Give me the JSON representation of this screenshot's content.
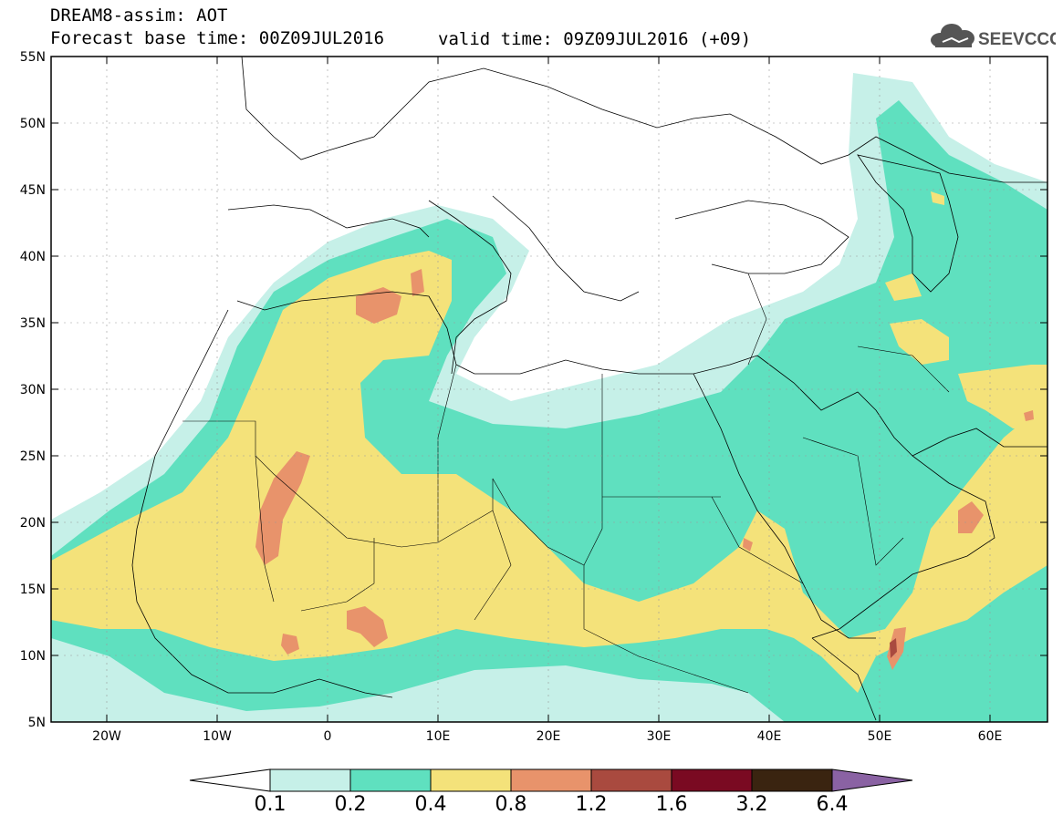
{
  "header": {
    "line1": "DREAM8-assim: AOT",
    "line2": "Forecast base time: 00Z09JUL2016",
    "valid": "valid time: 09Z09JUL2016 (+09)"
  },
  "logo": {
    "text": "SEEVCCC",
    "icon": "cloud-icon"
  },
  "map": {
    "lat_labels": [
      "55N",
      "50N",
      "45N",
      "40N",
      "35N",
      "30N",
      "25N",
      "20N",
      "15N",
      "10N",
      "5N"
    ],
    "lon_labels": [
      "20W",
      "10W",
      "0",
      "10E",
      "20E",
      "30E",
      "40E",
      "50E",
      "60E"
    ]
  },
  "colorbar": {
    "labels": [
      "0.1",
      "0.2",
      "0.4",
      "0.8",
      "1.2",
      "1.6",
      "3.2",
      "6.4"
    ],
    "colors": [
      "#ffffff",
      "#c6f0e8",
      "#5fe0bf",
      "#f4e27a",
      "#e8936b",
      "#a94a3f",
      "#7a0a22",
      "#3a2410",
      "#8a62a3"
    ]
  }
}
